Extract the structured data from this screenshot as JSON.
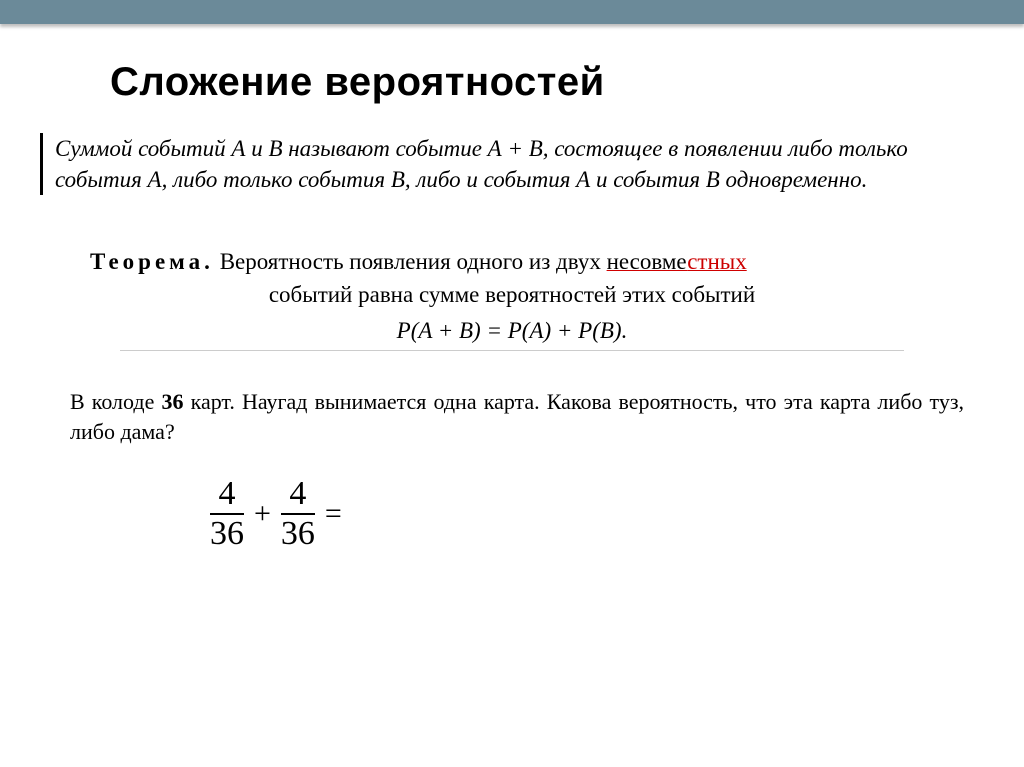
{
  "title": "Сложение  вероятностей",
  "definition": "Суммой событий А и В называют событие А + В, состоящее в появлении либо только события А, либо только события В, либо и события А и события В одновременно.",
  "theorem": {
    "label": "Теорема.",
    "line1_a": "Вероятность появления одного из двух ",
    "line1_b_under": "несовме",
    "line1_b_under_red": "стных",
    "line2": "событий равна сумме вероятностей этих событий",
    "formula": "P(A + B) = P(A) + P(B)."
  },
  "problem": {
    "p1": "В колоде ",
    "p2_bold": "36",
    "p3": " карт. Наугад вынимается одна карта. Какова вероятность, что эта карта либо туз, либо дама?"
  },
  "equation": {
    "frac1": {
      "num": "4",
      "den": "36"
    },
    "plus": "+",
    "frac2": {
      "num": "4",
      "den": "36"
    },
    "eq": "="
  },
  "colors": {
    "top_bar": "#6b8a99",
    "underline": "#d00000",
    "hr": "#cccccc",
    "text": "#000000",
    "bg": "#ffffff"
  },
  "typography": {
    "title_fontsize": 40,
    "body_fontsize": 23,
    "problem_fontsize": 22,
    "fraction_fontsize": 34,
    "theorem_label_letterspacing": 4
  }
}
